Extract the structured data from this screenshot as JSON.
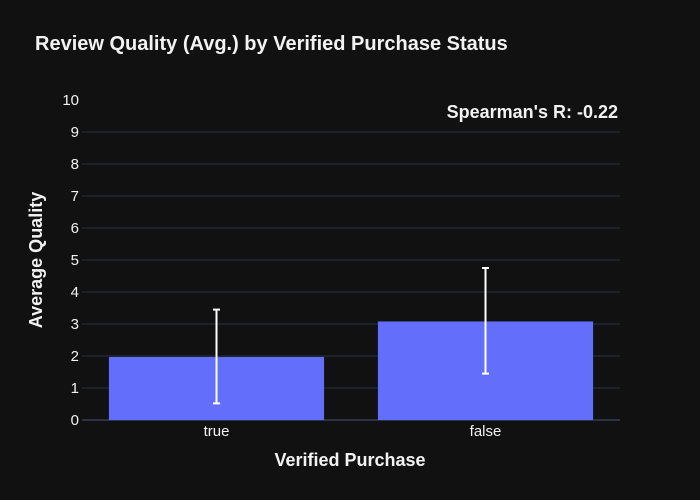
{
  "colors": {
    "background": "#111111",
    "text": "#f2f2f2",
    "grid": "#283442",
    "bar": "#636efa",
    "error_bar": "#ffffff"
  },
  "chart_data": {
    "type": "bar",
    "title": "Review Quality (Avg.) by Verified Purchase Status",
    "xlabel": "Verified Purchase",
    "ylabel": "Average Quality",
    "categories": [
      "true",
      "false"
    ],
    "series": [
      {
        "values": [
          1.97,
          3.08
        ],
        "error_low": [
          0.52,
          1.45
        ],
        "error_high": [
          3.45,
          4.75
        ]
      }
    ],
    "ylim": [
      0,
      10
    ],
    "yticks": [
      0,
      1,
      2,
      3,
      4,
      5,
      6,
      7,
      8,
      9,
      10
    ],
    "grid": true,
    "annotation": "Spearman's R: -0.22"
  }
}
